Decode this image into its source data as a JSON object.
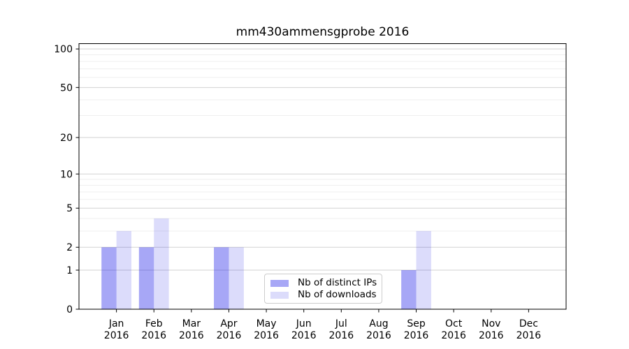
{
  "chart_data": {
    "type": "bar",
    "title": "mm430ammensgprobe 2016",
    "categories": [
      "Jan",
      "Feb",
      "Mar",
      "Apr",
      "May",
      "Jun",
      "Jul",
      "Aug",
      "Sep",
      "Oct",
      "Nov",
      "Dec"
    ],
    "year_label": "2016",
    "series": [
      {
        "key": "distinct-ips",
        "name": "Nb of distinct IPs",
        "color": "rgba(10,10,230,0.36)",
        "values": [
          2,
          2,
          0,
          2,
          0,
          0,
          0,
          0,
          1,
          0,
          0,
          0
        ]
      },
      {
        "key": "downloads",
        "name": "Nb of downloads",
        "color": "rgba(10,10,230,0.14)",
        "values": [
          3,
          4,
          0,
          2,
          0,
          0,
          0,
          0,
          3,
          0,
          0,
          0
        ]
      }
    ],
    "xlabel": "",
    "ylabel": "",
    "yscale": "log1p",
    "ylim": [
      0,
      110
    ],
    "yticks": [
      0,
      1,
      2,
      5,
      10,
      20,
      50,
      100
    ],
    "yticks_minor": [
      3,
      4,
      6,
      7,
      8,
      9,
      30,
      40,
      60,
      70,
      80,
      90
    ],
    "grid": "horizontal-only",
    "grid_major_color": "#d2d2d2",
    "grid_minor_color": "#efefef",
    "axis_color": "#000000",
    "legend_position": "lower-center"
  }
}
